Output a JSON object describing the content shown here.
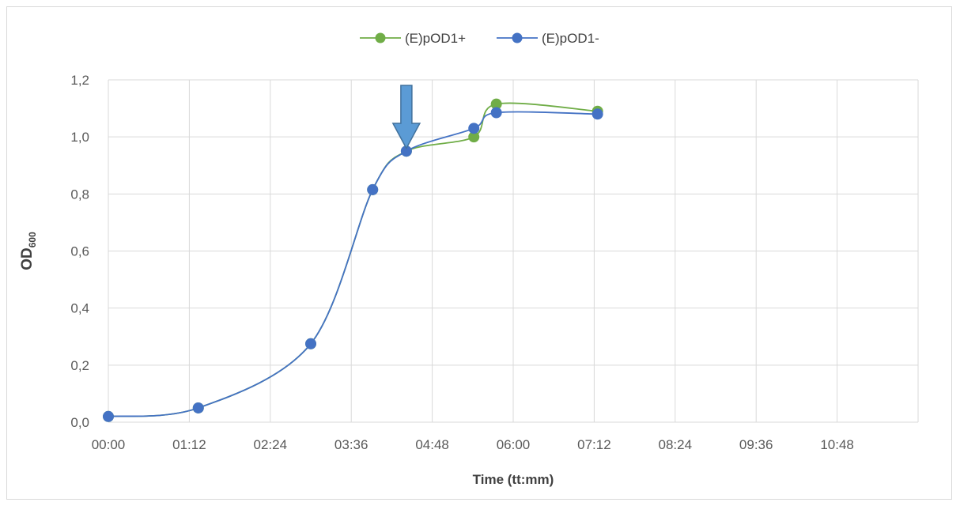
{
  "chart_data": {
    "type": "line",
    "title": "",
    "xlabel": "Time (tt:mm)",
    "ylabel": {
      "main": "OD",
      "sub": "600"
    },
    "x_tick_labels": [
      "00:00",
      "01:12",
      "02:24",
      "03:36",
      "04:48",
      "06:00",
      "07:12",
      "08:24",
      "09:36",
      "10:48"
    ],
    "y_tick_labels": [
      "0,0",
      "0,2",
      "0,4",
      "0,6",
      "0,8",
      "1,0",
      "1,2"
    ],
    "xlim_minutes": [
      0,
      720
    ],
    "ylim": [
      0,
      1.2
    ],
    "grid": true,
    "legend_position": "top-center",
    "series": [
      {
        "name": "(E)pOD1+",
        "color": "#70ad47",
        "points": [
          {
            "x": "00:00",
            "y": 0.02
          },
          {
            "x": "01:20",
            "y": 0.05
          },
          {
            "x": "03:00",
            "y": 0.275
          },
          {
            "x": "03:55",
            "y": 0.815
          },
          {
            "x": "04:25",
            "y": 0.95
          },
          {
            "x": "05:25",
            "y": 1.0
          },
          {
            "x": "05:45",
            "y": 1.115
          },
          {
            "x": "07:15",
            "y": 1.09
          }
        ]
      },
      {
        "name": "(E)pOD1-",
        "color": "#4472c4",
        "points": [
          {
            "x": "00:00",
            "y": 0.02
          },
          {
            "x": "01:20",
            "y": 0.05
          },
          {
            "x": "03:00",
            "y": 0.275
          },
          {
            "x": "03:55",
            "y": 0.815
          },
          {
            "x": "04:25",
            "y": 0.95
          },
          {
            "x": "05:25",
            "y": 1.03
          },
          {
            "x": "05:45",
            "y": 1.085
          },
          {
            "x": "07:15",
            "y": 1.08
          }
        ]
      }
    ],
    "annotations": [
      {
        "type": "down-arrow",
        "x": "04:25",
        "color": "#5b9bd5",
        "outline": "#41719c"
      }
    ]
  }
}
